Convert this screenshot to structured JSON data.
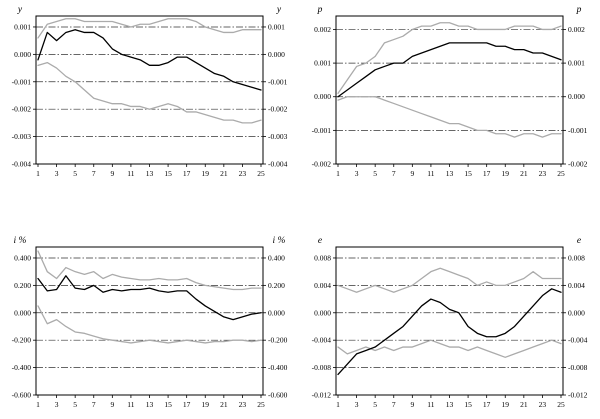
{
  "figure": {
    "background": "#ffffff",
    "gridline_color": "#333333",
    "border_color": "#000000"
  },
  "chart_data": [
    {
      "type": "line",
      "title_left": "y",
      "title_right": "y",
      "x_range": [
        1,
        25
      ],
      "x_ticks": [
        1,
        3,
        5,
        7,
        9,
        11,
        13,
        15,
        17,
        19,
        21,
        23,
        25
      ],
      "ylim": [
        -0.004,
        0.0014
      ],
      "ytick_values": [
        0.001,
        0.0,
        -0.001,
        -0.002,
        -0.003,
        -0.004
      ],
      "ytick_labels": [
        "0.001",
        "0.000",
        "-0.001",
        "-0.002",
        "-0.003",
        "-0.004"
      ],
      "series": [
        {
          "name": "upper-confidence-band",
          "color": "#ababab",
          "values": [
            0.0006,
            0.0011,
            0.0012,
            0.0013,
            0.0013,
            0.0012,
            0.0012,
            0.0012,
            0.0012,
            0.0011,
            0.001,
            0.0011,
            0.0011,
            0.0012,
            0.0013,
            0.0013,
            0.0013,
            0.0012,
            0.001,
            0.0009,
            0.0008,
            0.0008,
            0.0009,
            0.0009,
            0.0009
          ]
        },
        {
          "name": "lower-confidence-band",
          "color": "#ababab",
          "values": [
            -0.0004,
            -0.0003,
            -0.0005,
            -0.0008,
            -0.001,
            -0.0013,
            -0.0016,
            -0.0017,
            -0.0018,
            -0.0018,
            -0.0019,
            -0.0019,
            -0.002,
            -0.0019,
            -0.0018,
            -0.0019,
            -0.0021,
            -0.0021,
            -0.0022,
            -0.0023,
            -0.0024,
            -0.0024,
            -0.0025,
            -0.0025,
            -0.0024
          ]
        },
        {
          "name": "response",
          "color": "#000000",
          "values": [
            -0.0002,
            0.0008,
            0.0005,
            0.0008,
            0.0009,
            0.0008,
            0.0008,
            0.0006,
            0.0002,
            0.0,
            -0.0001,
            -0.0002,
            -0.0004,
            -0.0004,
            -0.0003,
            -0.0001,
            -0.0001,
            -0.0003,
            -0.0005,
            -0.0007,
            -0.0008,
            -0.001,
            -0.0011,
            -0.0012,
            -0.0013
          ]
        }
      ]
    },
    {
      "type": "line",
      "title_left": "p",
      "title_right": "p",
      "x_range": [
        1,
        25
      ],
      "x_ticks": [
        1,
        3,
        5,
        7,
        9,
        11,
        13,
        15,
        17,
        19,
        21,
        23,
        25
      ],
      "ylim": [
        -0.002,
        0.0024
      ],
      "ytick_values": [
        0.002,
        0.001,
        0.0,
        -0.001,
        -0.002
      ],
      "ytick_labels": [
        "0.002",
        "0.001",
        "0.000",
        "-0.001",
        "-0.002"
      ],
      "series": [
        {
          "name": "upper-confidence-band",
          "color": "#ababab",
          "values": [
            0.0001,
            0.0005,
            0.0009,
            0.001,
            0.0012,
            0.0016,
            0.0017,
            0.0018,
            0.002,
            0.0021,
            0.0021,
            0.0022,
            0.0022,
            0.0021,
            0.0021,
            0.002,
            0.002,
            0.002,
            0.002,
            0.0021,
            0.0021,
            0.0021,
            0.002,
            0.002,
            0.0021
          ]
        },
        {
          "name": "lower-confidence-band",
          "color": "#ababab",
          "values": [
            -0.0001,
            0.0,
            0.0,
            0.0,
            0.0,
            -0.0001,
            -0.0002,
            -0.0003,
            -0.0004,
            -0.0005,
            -0.0006,
            -0.0007,
            -0.0008,
            -0.0008,
            -0.0009,
            -0.001,
            -0.001,
            -0.0011,
            -0.0011,
            -0.0012,
            -0.0011,
            -0.0011,
            -0.0012,
            -0.0011,
            -0.0011
          ]
        },
        {
          "name": "response",
          "color": "#000000",
          "values": [
            0.0,
            0.0002,
            0.0004,
            0.0006,
            0.0008,
            0.0009,
            0.001,
            0.001,
            0.0012,
            0.0013,
            0.0014,
            0.0015,
            0.0016,
            0.0016,
            0.0016,
            0.0016,
            0.0016,
            0.0015,
            0.0015,
            0.0014,
            0.0014,
            0.0013,
            0.0013,
            0.0012,
            0.0011
          ]
        }
      ]
    },
    {
      "type": "line",
      "title_left": "i %",
      "title_right": "i %",
      "x_range": [
        1,
        25
      ],
      "x_ticks": [
        1,
        3,
        5,
        7,
        9,
        11,
        13,
        15,
        17,
        19,
        21,
        23,
        25
      ],
      "ylim": [
        -0.6,
        0.48
      ],
      "ytick_values": [
        0.4,
        0.2,
        0.0,
        -0.2,
        -0.4,
        -0.6
      ],
      "ytick_labels": [
        "0.400",
        "0.200",
        "0.000",
        "-0.200",
        "-0.400",
        "-0.600"
      ],
      "series": [
        {
          "name": "upper-confidence-band",
          "color": "#ababab",
          "values": [
            0.45,
            0.3,
            0.25,
            0.33,
            0.3,
            0.28,
            0.3,
            0.25,
            0.28,
            0.26,
            0.25,
            0.24,
            0.24,
            0.25,
            0.24,
            0.24,
            0.25,
            0.22,
            0.2,
            0.19,
            0.18,
            0.17,
            0.17,
            0.18,
            0.18
          ]
        },
        {
          "name": "lower-confidence-band",
          "color": "#ababab",
          "values": [
            0.05,
            -0.08,
            -0.05,
            -0.1,
            -0.14,
            -0.15,
            -0.17,
            -0.19,
            -0.2,
            -0.21,
            -0.22,
            -0.21,
            -0.2,
            -0.21,
            -0.22,
            -0.21,
            -0.2,
            -0.21,
            -0.22,
            -0.21,
            -0.21,
            -0.2,
            -0.2,
            -0.21,
            -0.2
          ]
        },
        {
          "name": "response",
          "color": "#000000",
          "values": [
            0.25,
            0.16,
            0.17,
            0.27,
            0.18,
            0.17,
            0.2,
            0.15,
            0.17,
            0.16,
            0.17,
            0.17,
            0.18,
            0.16,
            0.15,
            0.16,
            0.16,
            0.1,
            0.05,
            0.01,
            -0.03,
            -0.05,
            -0.03,
            -0.01,
            0.0
          ]
        }
      ]
    },
    {
      "type": "line",
      "title_left": "e",
      "title_right": "e",
      "x_range": [
        1,
        25
      ],
      "x_ticks": [
        1,
        3,
        5,
        7,
        9,
        11,
        13,
        15,
        17,
        19,
        21,
        23,
        25
      ],
      "ylim": [
        -0.012,
        0.0096
      ],
      "ytick_values": [
        0.008,
        0.004,
        0.0,
        -0.004,
        -0.008,
        -0.012
      ],
      "ytick_labels": [
        "0.008",
        "0.004",
        "0.000",
        "-0.004",
        "-0.008",
        "-0.012"
      ],
      "series": [
        {
          "name": "upper-confidence-band",
          "color": "#ababab",
          "values": [
            0.004,
            0.0035,
            0.003,
            0.0035,
            0.004,
            0.0035,
            0.003,
            0.0035,
            0.004,
            0.005,
            0.006,
            0.0065,
            0.006,
            0.0055,
            0.005,
            0.004,
            0.0045,
            0.004,
            0.004,
            0.0045,
            0.005,
            0.006,
            0.005,
            0.005,
            0.005
          ]
        },
        {
          "name": "lower-confidence-band",
          "color": "#ababab",
          "values": [
            -0.005,
            -0.006,
            -0.0055,
            -0.005,
            -0.0055,
            -0.005,
            -0.0055,
            -0.005,
            -0.005,
            -0.0045,
            -0.004,
            -0.0045,
            -0.005,
            -0.005,
            -0.0055,
            -0.005,
            -0.0055,
            -0.006,
            -0.0065,
            -0.006,
            -0.0055,
            -0.005,
            -0.0045,
            -0.004,
            -0.0045
          ]
        },
        {
          "name": "response",
          "color": "#000000",
          "values": [
            -0.009,
            -0.0075,
            -0.006,
            -0.0055,
            -0.005,
            -0.004,
            -0.003,
            -0.002,
            -0.0005,
            0.001,
            0.002,
            0.0015,
            0.0005,
            0.0,
            -0.002,
            -0.003,
            -0.0035,
            -0.0035,
            -0.003,
            -0.002,
            -0.0005,
            0.001,
            0.0025,
            0.0035,
            0.003
          ]
        }
      ]
    }
  ]
}
